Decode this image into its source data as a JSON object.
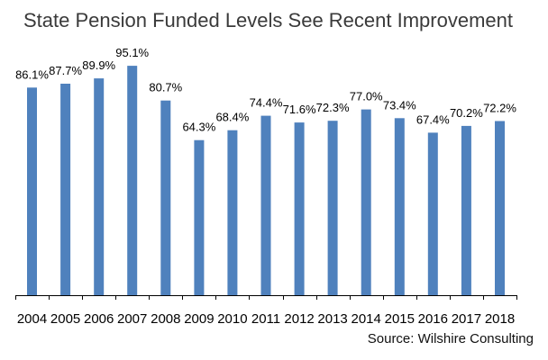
{
  "chart_data": {
    "type": "bar",
    "title": "State Pension Funded Levels See Recent Improvement",
    "categories": [
      "2004",
      "2005",
      "2006",
      "2007",
      "2008",
      "2009",
      "2010",
      "2011",
      "2012",
      "2013",
      "2014",
      "2015",
      "2016",
      "2017",
      "2018"
    ],
    "values": [
      86.1,
      87.7,
      89.9,
      95.1,
      80.7,
      64.3,
      68.4,
      74.4,
      71.6,
      72.3,
      77.0,
      73.4,
      67.4,
      70.2,
      72.2
    ],
    "data_labels": [
      "86.1%",
      "87.7%",
      "89.9%",
      "95.1%",
      "80.7%",
      "64.3%",
      "68.4%",
      "74.4%",
      "71.6%",
      "72.3%",
      "77.0%",
      "73.4%",
      "67.4%",
      "70.2%",
      "72.2%"
    ],
    "xlabel": "",
    "ylabel": "",
    "ylim": [
      0,
      100
    ],
    "grid": false,
    "legend": "none",
    "bar_color": "#4f81bd",
    "source": "Source: Wilshire Consulting"
  }
}
